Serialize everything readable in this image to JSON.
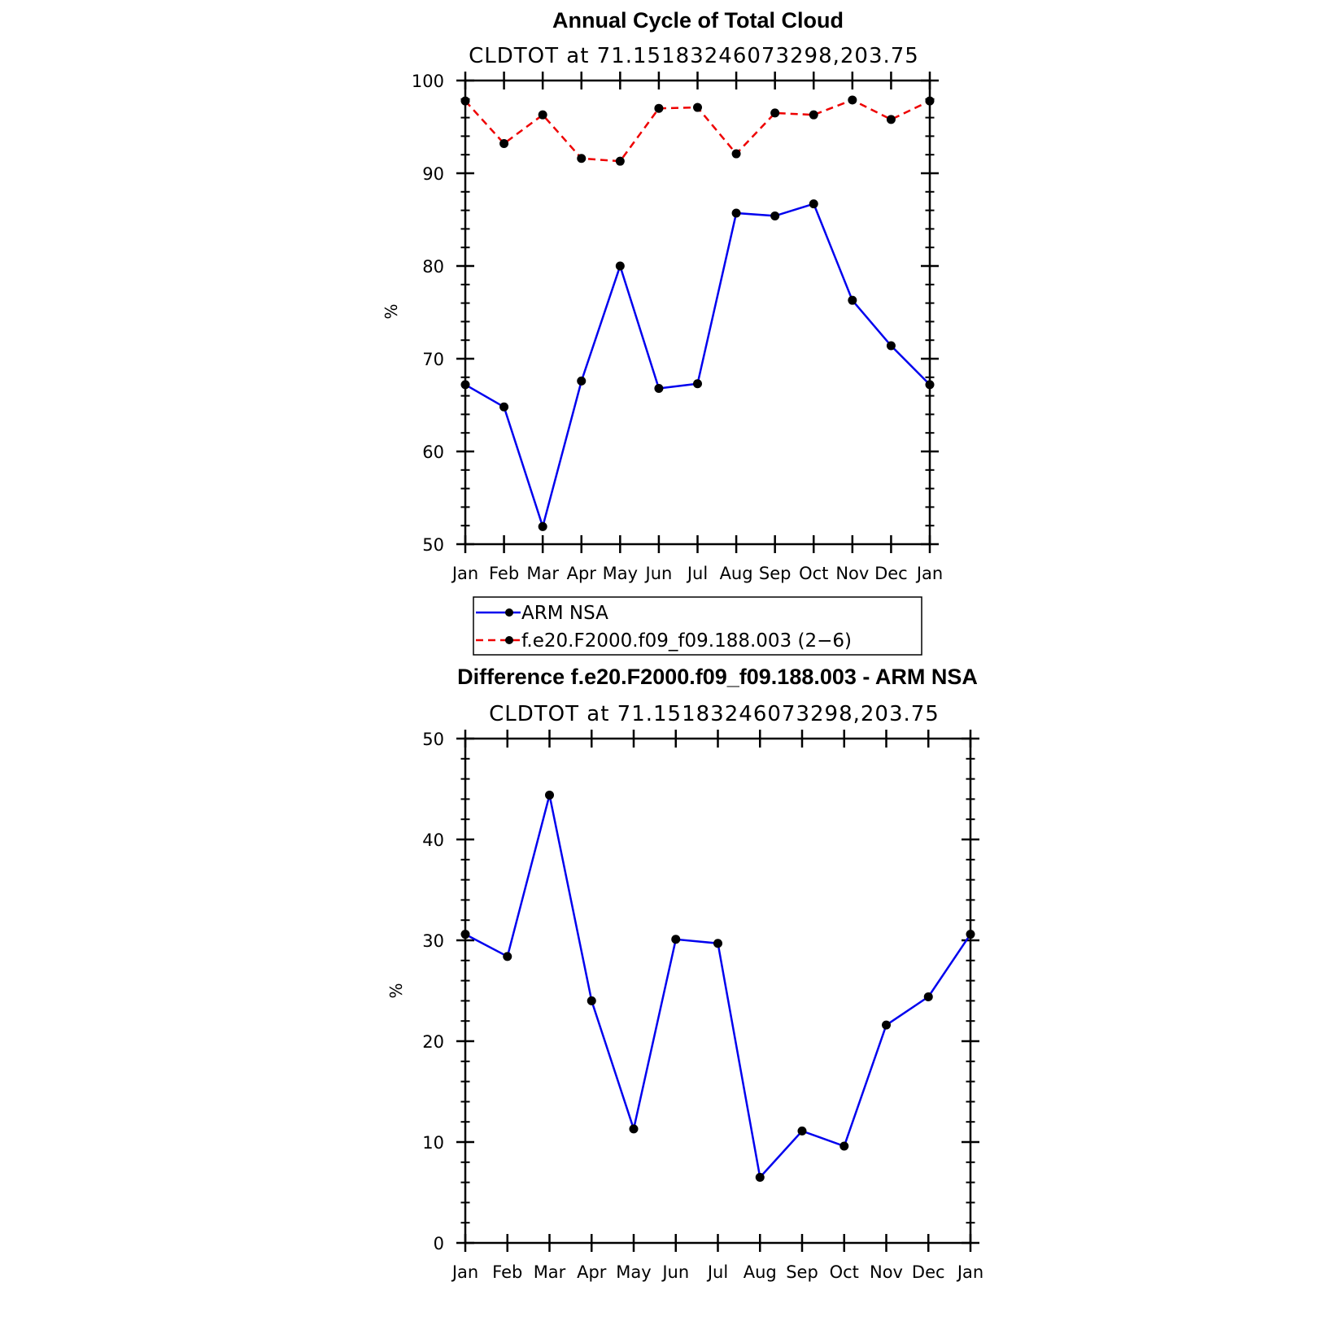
{
  "chart_data": [
    {
      "type": "line",
      "title": "Annual Cycle of Total Cloud",
      "subtitle": "CLDTOT at 71.15183246073298,203.75",
      "xlabel": "",
      "ylabel": "%",
      "categories": [
        "Jan",
        "Feb",
        "Mar",
        "Apr",
        "May",
        "Jun",
        "Jul",
        "Aug",
        "Sep",
        "Oct",
        "Nov",
        "Dec",
        "Jan"
      ],
      "ylim": [
        50,
        100
      ],
      "yticks": [
        50,
        60,
        70,
        80,
        90,
        100
      ],
      "ytick_labels": [
        "50",
        "60",
        "70",
        "80",
        "90",
        "100"
      ],
      "series": [
        {
          "name": "ARM NSA",
          "color": "#0000ee",
          "dash": "solid",
          "values": [
            67.2,
            64.8,
            51.9,
            67.6,
            80.0,
            66.8,
            67.3,
            85.7,
            85.4,
            86.7,
            76.3,
            71.4,
            67.2
          ]
        },
        {
          "name": "f.e20.F2000.f09_f09.188.003 (2−6)",
          "color": "#ee0000",
          "dash": "dashed",
          "values": [
            97.8,
            93.2,
            96.3,
            91.6,
            91.3,
            97.0,
            97.1,
            92.1,
            96.5,
            96.3,
            97.9,
            95.8,
            97.8
          ]
        }
      ],
      "legend": {
        "position": "below"
      }
    },
    {
      "type": "line",
      "title": "Difference f.e20.F2000.f09_f09.188.003 - ARM NSA",
      "subtitle": "CLDTOT at 71.15183246073298,203.75",
      "xlabel": "",
      "ylabel": "%",
      "categories": [
        "Jan",
        "Feb",
        "Mar",
        "Apr",
        "May",
        "Jun",
        "Jul",
        "Aug",
        "Sep",
        "Oct",
        "Nov",
        "Dec",
        "Jan"
      ],
      "ylim": [
        0,
        50
      ],
      "yticks": [
        0,
        10,
        20,
        30,
        40,
        50
      ],
      "ytick_labels": [
        "0",
        "10",
        "20",
        "30",
        "40",
        "50"
      ],
      "series": [
        {
          "name": "Difference",
          "color": "#0000ee",
          "dash": "solid",
          "values": [
            30.6,
            28.4,
            44.4,
            24.0,
            11.3,
            30.1,
            29.7,
            6.5,
            11.1,
            9.6,
            21.6,
            24.4,
            30.6
          ]
        }
      ]
    }
  ]
}
